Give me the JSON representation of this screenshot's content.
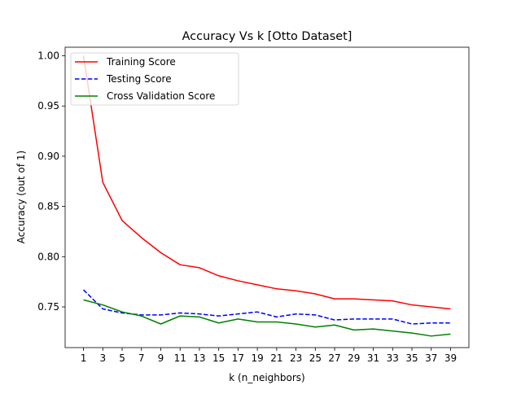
{
  "chart_data": {
    "type": "line",
    "title": "Accuracy Vs k [Otto Dataset]",
    "xlabel": "k (n_neighbors)",
    "ylabel": "Accuracy (out of 1)",
    "x": [
      1,
      3,
      5,
      7,
      9,
      11,
      13,
      15,
      17,
      19,
      21,
      23,
      25,
      27,
      29,
      31,
      33,
      35,
      37,
      39
    ],
    "xticks": [
      "1",
      "3",
      "5",
      "7",
      "9",
      "11",
      "13",
      "15",
      "17",
      "19",
      "21",
      "23",
      "25",
      "27",
      "29",
      "31",
      "33",
      "35",
      "37",
      "39"
    ],
    "xlim": [
      -0.9,
      40.9
    ],
    "ylim": [
      0.7095,
      1.0085
    ],
    "yticks": [
      0.75,
      0.8,
      0.85,
      0.9,
      0.95,
      1.0
    ],
    "ytick_labels": [
      "0.75",
      "0.80",
      "0.85",
      "0.90",
      "0.95",
      "1.00"
    ],
    "grid": false,
    "legend_position": "top-left",
    "series": [
      {
        "name": "Training Score",
        "color": "#ff0000",
        "dash": "solid",
        "values": [
          1.0,
          0.874,
          0.836,
          0.819,
          0.804,
          0.792,
          0.789,
          0.781,
          0.776,
          0.772,
          0.768,
          0.766,
          0.763,
          0.758,
          0.758,
          0.757,
          0.756,
          0.752,
          0.75,
          0.748
        ]
      },
      {
        "name": "Testing Score",
        "color": "#0000ff",
        "dash": "dashed",
        "values": [
          0.767,
          0.748,
          0.744,
          0.742,
          0.742,
          0.744,
          0.743,
          0.741,
          0.743,
          0.745,
          0.74,
          0.743,
          0.742,
          0.737,
          0.738,
          0.738,
          0.738,
          0.733,
          0.734,
          0.734
        ]
      },
      {
        "name": "Cross Validation Score",
        "color": "#008000",
        "dash": "solid",
        "values": [
          0.757,
          0.752,
          0.745,
          0.741,
          0.733,
          0.741,
          0.74,
          0.734,
          0.738,
          0.735,
          0.735,
          0.733,
          0.73,
          0.732,
          0.727,
          0.728,
          0.726,
          0.724,
          0.721,
          0.723
        ]
      }
    ]
  }
}
